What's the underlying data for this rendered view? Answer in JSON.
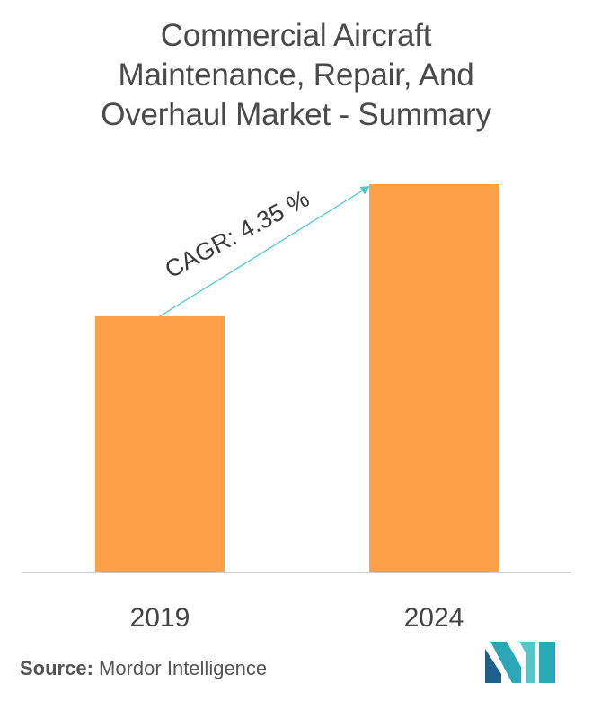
{
  "title_lines": [
    "Commercial Aircraft",
    "Maintenance, Repair, And",
    "Overhaul Market - Summary"
  ],
  "chart_data": {
    "type": "bar",
    "categories": [
      "2019",
      "2024"
    ],
    "values": [
      0.66,
      1.0
    ],
    "ylim": [
      0,
      1.0
    ],
    "annotation": "CAGR: 4.35 %",
    "bar_color": "#FDA048",
    "arrow_color": "#4CC9CF",
    "axis_color": "#bfbfbf",
    "grid": false
  },
  "source": {
    "label": "Source:",
    "text": "Mordor Intelligence"
  },
  "logo": {
    "icon": "mordor-intelligence-logo",
    "colors": [
      "#1F5F8B",
      "#2AA8B8",
      "#56C6C9"
    ]
  }
}
